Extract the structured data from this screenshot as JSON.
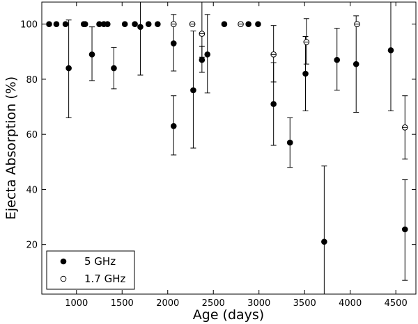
{
  "chart_data": {
    "type": "scatter",
    "xlabel": "Age (days)",
    "ylabel": "Ejecta Absorption (%)",
    "xlim": [
      620,
      4720
    ],
    "ylim": [
      2,
      108
    ],
    "xticks": [
      1000,
      1500,
      2000,
      2500,
      3000,
      3500,
      4000,
      4500
    ],
    "yticks": [
      20,
      40,
      60,
      80,
      100
    ],
    "grid": false,
    "legend_position": "lower-left",
    "series": [
      {
        "name": "5 GHz",
        "marker": "filled-circle",
        "points": [
          {
            "x": 700,
            "y": 100
          },
          {
            "x": 780,
            "y": 100
          },
          {
            "x": 880,
            "y": 100
          },
          {
            "x": 915,
            "y": 84,
            "lo": 66,
            "hi": 101.5
          },
          {
            "x": 1080,
            "y": 100
          },
          {
            "x": 1095,
            "y": 100
          },
          {
            "x": 1170,
            "y": 89,
            "lo": 79.5,
            "hi": 99
          },
          {
            "x": 1250,
            "y": 100
          },
          {
            "x": 1300,
            "y": 100
          },
          {
            "x": 1340,
            "y": 100
          },
          {
            "x": 1410,
            "y": 84,
            "lo": 76.5,
            "hi": 91.5
          },
          {
            "x": 1530,
            "y": 100
          },
          {
            "x": 1640,
            "y": 100
          },
          {
            "x": 1700,
            "y": 99,
            "lo": 81.5,
            "hi": 116
          },
          {
            "x": 1790,
            "y": 100
          },
          {
            "x": 1890,
            "y": 100
          },
          {
            "x": 2065,
            "y": 93,
            "lo": 83,
            "hi": 103.5
          },
          {
            "x": 2065,
            "y": 63,
            "lo": 52.5,
            "hi": 74
          },
          {
            "x": 2280,
            "y": 76,
            "lo": 55,
            "hi": 97.5
          },
          {
            "x": 2375,
            "y": 87,
            "lo": 82.5,
            "hi": 92
          },
          {
            "x": 2435,
            "y": 89,
            "lo": 75,
            "hi": 103.5
          },
          {
            "x": 2620,
            "y": 100
          },
          {
            "x": 2885,
            "y": 100
          },
          {
            "x": 2990,
            "y": 100
          },
          {
            "x": 3160,
            "y": 71,
            "lo": 56,
            "hi": 86
          },
          {
            "x": 3340,
            "y": 57,
            "lo": 48,
            "hi": 66
          },
          {
            "x": 3510,
            "y": 82,
            "lo": 68.5,
            "hi": 95.5
          },
          {
            "x": 3715,
            "y": 21,
            "lo": -5,
            "hi": 48.5
          },
          {
            "x": 3855,
            "y": 87,
            "lo": 76,
            "hi": 98.5
          },
          {
            "x": 4065,
            "y": 85.5,
            "lo": 68,
            "hi": 103
          },
          {
            "x": 4445,
            "y": 90.5,
            "lo": 68.5,
            "hi": 113
          },
          {
            "x": 4600,
            "y": 25.5,
            "lo": 7,
            "hi": 43.5
          }
        ]
      },
      {
        "name": "1.7 GHz",
        "marker": "open-circle",
        "points": [
          {
            "x": 2065,
            "y": 100
          },
          {
            "x": 2270,
            "y": 100
          },
          {
            "x": 2375,
            "y": 96.5,
            "lo": 88,
            "hi": 124
          },
          {
            "x": 2800,
            "y": 100
          },
          {
            "x": 3160,
            "y": 89,
            "lo": 79,
            "hi": 99.5
          },
          {
            "x": 3520,
            "y": 93.5,
            "lo": 85.5,
            "hi": 102
          },
          {
            "x": 4075,
            "y": 100
          },
          {
            "x": 4600,
            "y": 62.5,
            "lo": 51,
            "hi": 74
          }
        ]
      }
    ]
  }
}
